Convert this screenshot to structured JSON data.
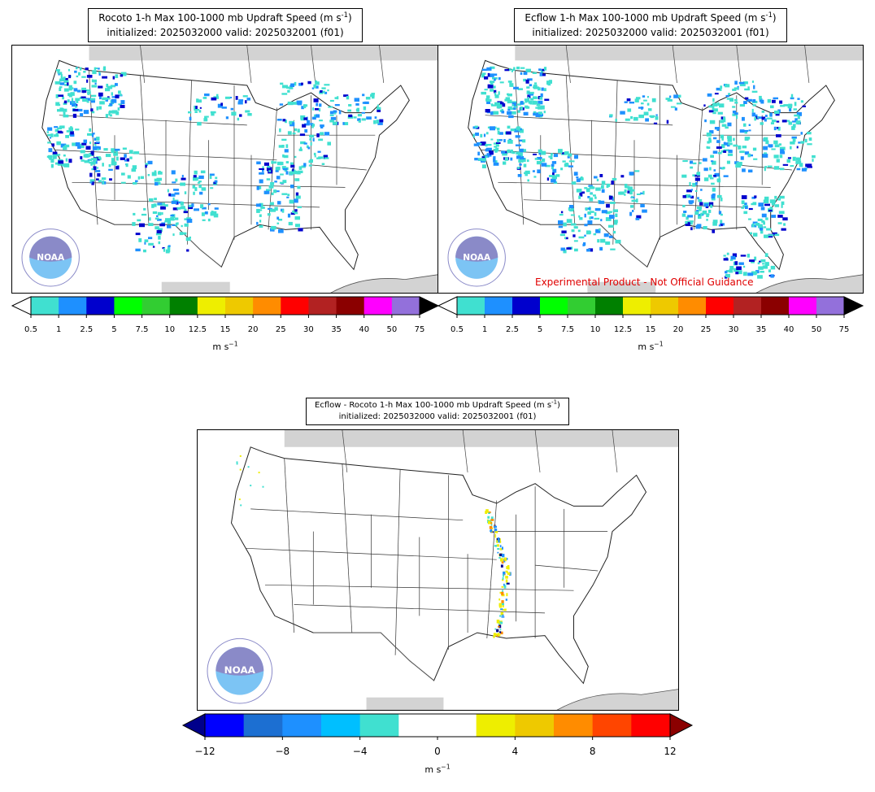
{
  "panels": [
    {
      "id": "rocoto",
      "title_main": "Rocoto 1-h Max 100-1000 mb Updraft Speed (m s",
      "title_sup": "-1",
      "title_close": ")",
      "title_line2": "initialized: 2025032000 valid: 2025032001 (f01)"
    },
    {
      "id": "ecflow",
      "title_main": "Ecflow 1-h Max 100-1000 mb Updraft Speed (m s",
      "title_sup": "-1",
      "title_close": ")",
      "title_line2": "initialized: 2025032000 valid: 2025032001 (f01)",
      "disclaimer": "Experimental Product - Not Official Guidance"
    },
    {
      "id": "diff",
      "title_main": "Ecflow - Rocoto 1-h Max 100-1000 mb Updraft Speed (m s",
      "title_sup": "-1",
      "title_close": ")",
      "title_line2": "initialized: 2025032000 valid: 2025032001 (f01)"
    }
  ],
  "colorbar_speed": {
    "ticks": [
      "0.5",
      "1",
      "2.5",
      "5",
      "7.5",
      "10",
      "12.5",
      "15",
      "20",
      "25",
      "30",
      "35",
      "40",
      "50",
      "75"
    ],
    "colors": [
      "#40e0d0",
      "#1e90ff",
      "#0000cd",
      "#00ff00",
      "#32cd32",
      "#008000",
      "#eeee00",
      "#eec900",
      "#ff8c00",
      "#ff0000",
      "#b22222",
      "#8b0000",
      "#ff00ff",
      "#9370db"
    ],
    "under_color": "#ffffff",
    "over_color": "#000000",
    "unit_main": "m s",
    "unit_sup": "−1"
  },
  "colorbar_diff": {
    "ticks": [
      "−12",
      "−8",
      "−4",
      "0",
      "4",
      "8",
      "12"
    ],
    "colors": [
      "#0000ff",
      "#1c6fd2",
      "#1e90ff",
      "#00bfff",
      "#40e0d0",
      "#ffffff",
      "#ffffff",
      "#eeee00",
      "#eec900",
      "#ff8c00",
      "#ff4500",
      "#ff0000"
    ],
    "under_color": "#00008b",
    "over_color": "#8b0000",
    "unit_main": "m s",
    "unit_sup": "−1"
  },
  "logo": {
    "text": "NOAA",
    "ring_text": "NATIONAL OCEANIC AND ATMOSPHERIC ADMINISTRATION · U.S. DEPARTMENT OF COMMERCE"
  },
  "colors": {
    "land_gray": "#d3d3d3",
    "border": "#333333",
    "logo_dark": "#8a8ac8",
    "logo_light": "#7cc4f4"
  }
}
